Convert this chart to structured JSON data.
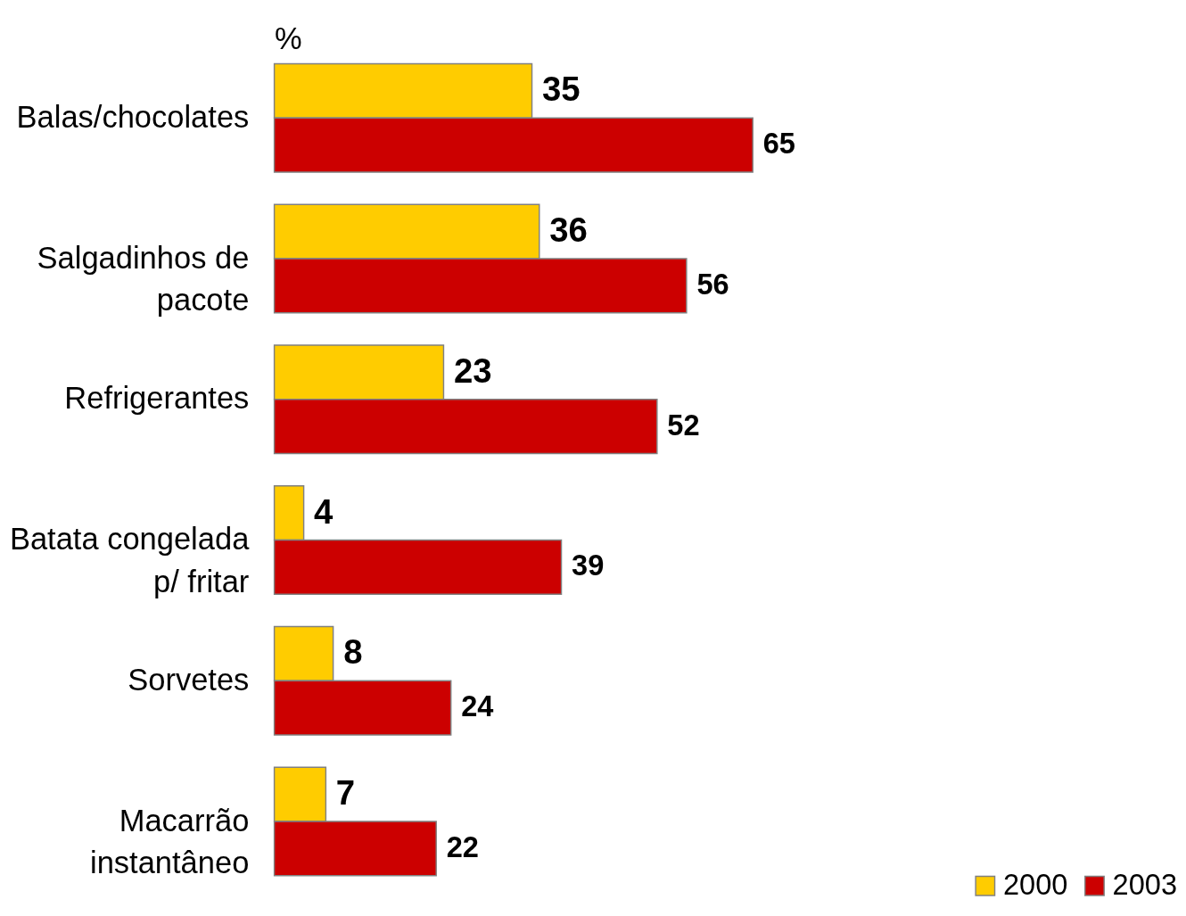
{
  "chart_data": {
    "type": "bar",
    "orientation": "horizontal",
    "xlabel": "%",
    "categories": [
      "Balas/chocolates",
      "Salgadinhos de pacote",
      "Refrigerantes",
      "Batata congelada p/ fritar",
      "Sorvetes",
      "Macarrão instantâneo"
    ],
    "series": [
      {
        "name": "2000",
        "color": "#ffcc00",
        "values": [
          35,
          36,
          23,
          4,
          8,
          7
        ]
      },
      {
        "name": "2003",
        "color": "#cc0000",
        "values": [
          65,
          56,
          52,
          39,
          24,
          22
        ]
      }
    ],
    "data_labels": true,
    "legend": "bottom right"
  }
}
